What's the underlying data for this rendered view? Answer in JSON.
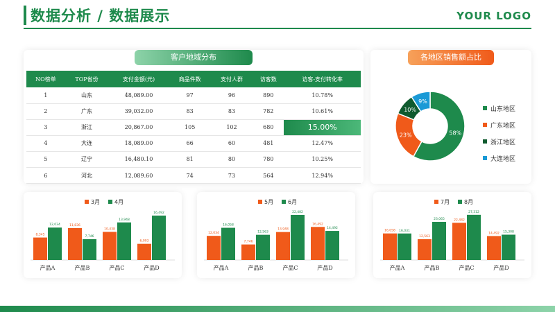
{
  "header": {
    "title": "数据分析 / 数据展示",
    "logo": "YOUR LOGO"
  },
  "table": {
    "title": "客户地域分布",
    "columns": [
      "NO榜单",
      "TOP省份",
      "支付金额(元)",
      "商品件数",
      "支付人群",
      "访客数",
      "访客-支付转化率"
    ],
    "rows": [
      [
        "1",
        "山东",
        "48,089.00",
        "97",
        "96",
        "890",
        "10.78%"
      ],
      [
        "2",
        "广东",
        "39,032.00",
        "83",
        "83",
        "782",
        "10.61%"
      ],
      [
        "3",
        "浙江",
        "20,867.00",
        "105",
        "102",
        "680",
        "15.00%"
      ],
      [
        "4",
        "大连",
        "18,089.00",
        "66",
        "60",
        "481",
        "12.47%"
      ],
      [
        "5",
        "辽宁",
        "16,480.10",
        "81",
        "80",
        "780",
        "10.25%"
      ],
      [
        "6",
        "河北",
        "12,089.60",
        "74",
        "73",
        "564",
        "12.94%"
      ]
    ]
  },
  "chart_data": [
    {
      "type": "pie",
      "title": "各地区销售额占比",
      "labels": [
        "山东地区",
        "广东地区",
        "浙江地区",
        "大连地区"
      ],
      "values": [
        58,
        23,
        10,
        9
      ],
      "value_labels": [
        "58%",
        "23%",
        "10%",
        "9%"
      ],
      "colors": [
        "#1e8a4c",
        "#f05a1a",
        "#0f5a2e",
        "#1a9ad6"
      ],
      "legend": "right"
    },
    {
      "type": "bar",
      "categories": [
        "产品A",
        "产品B",
        "产品C",
        "产品D"
      ],
      "series": [
        {
          "name": "3月",
          "values": [
            8345,
            11836,
            10438,
            6003
          ],
          "labels": [
            "8,345",
            "11,836",
            "10,438",
            "6,003"
          ],
          "color": "#f05a1a"
        },
        {
          "name": "4月",
          "values": [
            12034,
            7746,
            13948,
            16492
          ],
          "labels": [
            "12,034",
            "7,746",
            "13,948",
            "16,492"
          ],
          "color": "#1e8a4c"
        }
      ],
      "ylim": [
        0,
        17500
      ],
      "legend": "top"
    },
    {
      "type": "bar",
      "categories": [
        "产品A",
        "产品B",
        "产品C",
        "产品D"
      ],
      "series": [
        {
          "name": "5月",
          "values": [
            12034,
            7746,
            13948,
            16492
          ],
          "labels": [
            "12,034",
            "7,746",
            "13,948",
            "16,492"
          ],
          "color": "#f05a1a"
        },
        {
          "name": "6月",
          "values": [
            16058,
            12563,
            22482,
            14492
          ],
          "labels": [
            "16,058",
            "12,563",
            "22,482",
            "14,492"
          ],
          "color": "#1e8a4c"
        }
      ],
      "ylim": [
        0,
        23500
      ],
      "legend": "top"
    },
    {
      "type": "bar",
      "categories": [
        "产品A",
        "产品B",
        "产品C",
        "产品D"
      ],
      "series": [
        {
          "name": "7月",
          "values": [
            16058,
            12563,
            22482,
            14492
          ],
          "labels": [
            "16,058",
            "12,563",
            "22,482",
            "14,492"
          ],
          "color": "#f05a1a"
        },
        {
          "name": "8月",
          "values": [
            16031,
            23065,
            27312,
            15308
          ],
          "labels": [
            "16,031",
            "23,065",
            "27,312",
            "15,308"
          ],
          "color": "#1e8a4c"
        }
      ],
      "ylim": [
        0,
        28500
      ],
      "legend": "top"
    }
  ]
}
